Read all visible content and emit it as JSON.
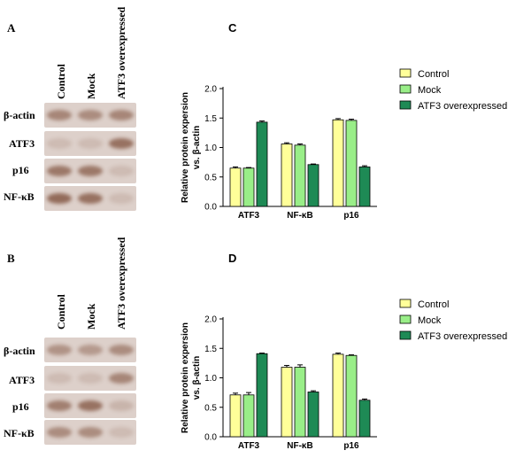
{
  "figure": {
    "panels": [
      {
        "letter": "A",
        "lanes": [
          "Control",
          "Mock",
          "ATF3 overexpressed"
        ],
        "rows": [
          {
            "label": "β-actin",
            "intensity": [
              0.55,
              0.5,
              0.55
            ]
          },
          {
            "label": "ATF3",
            "intensity": [
              0.15,
              0.15,
              0.7
            ]
          },
          {
            "label": "p16",
            "intensity": [
              0.65,
              0.65,
              0.15
            ]
          },
          {
            "label": "NF-κB",
            "intensity": [
              0.75,
              0.7,
              0.15
            ]
          }
        ]
      },
      {
        "letter": "B",
        "lanes": [
          "Control",
          "Mock",
          "ATF3 overexpressed"
        ],
        "rows": [
          {
            "label": "β-actin",
            "intensity": [
              0.45,
              0.4,
              0.5
            ]
          },
          {
            "label": "ATF3",
            "intensity": [
              0.15,
              0.15,
              0.55
            ]
          },
          {
            "label": "p16",
            "intensity": [
              0.6,
              0.7,
              0.2
            ]
          },
          {
            "label": "NF-κB",
            "intensity": [
              0.5,
              0.5,
              0.15
            ]
          }
        ]
      }
    ]
  },
  "colors": {
    "control": "#ffff99",
    "mock": "#99ee88",
    "atf3": "#1e8a55",
    "band": "#7a4a35",
    "strip": "#ddd0ca"
  },
  "chart_data": [
    {
      "letter": "C",
      "type": "bar",
      "categories": [
        "ATF3",
        "NF-κB",
        "p16"
      ],
      "series": [
        {
          "name": "Control",
          "values": [
            0.65,
            1.06,
            1.47
          ],
          "errors": [
            0.02,
            0.02,
            0.02
          ]
        },
        {
          "name": "Mock",
          "values": [
            0.65,
            1.04,
            1.46
          ],
          "errors": [
            0.01,
            0.02,
            0.02
          ]
        },
        {
          "name": "ATF3 overexpressed",
          "values": [
            1.43,
            0.71,
            0.67
          ],
          "errors": [
            0.02,
            0.01,
            0.02
          ]
        }
      ],
      "ylabel": "Relative protein expersion vs. β-actin",
      "ylim": [
        0,
        2.0
      ],
      "yticks": [
        "0.0",
        "0.5",
        "1.0",
        "1.5",
        "2.0"
      ],
      "legend": "top-right"
    },
    {
      "letter": "D",
      "type": "bar",
      "categories": [
        "ATF3",
        "NF-κB",
        "p16"
      ],
      "series": [
        {
          "name": "Control",
          "values": [
            0.71,
            1.18,
            1.4
          ],
          "errors": [
            0.03,
            0.03,
            0.02
          ]
        },
        {
          "name": "Mock",
          "values": [
            0.71,
            1.18,
            1.38
          ],
          "errors": [
            0.04,
            0.04,
            0.01
          ]
        },
        {
          "name": "ATF3 overexpressed",
          "values": [
            1.41,
            0.76,
            0.62
          ],
          "errors": [
            0.01,
            0.02,
            0.02
          ]
        }
      ],
      "ylabel": "Relative protein expersion vs. β-actin",
      "ylim": [
        0,
        2.0
      ],
      "yticks": [
        "0.0",
        "0.5",
        "1.0",
        "1.5",
        "2.0"
      ],
      "legend": "top-right"
    }
  ]
}
